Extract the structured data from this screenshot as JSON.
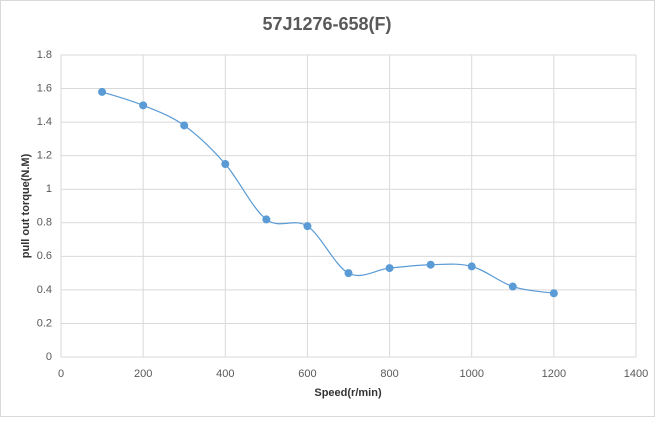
{
  "chart_data": {
    "type": "scatter",
    "title": "57J1276-658(F)",
    "x_label": "Speed(r/min)",
    "y_label": "pull out torque(N.M)",
    "series": [
      {
        "name": "pull out torque",
        "color": "#5b9bd5",
        "x": [
          100,
          200,
          300,
          400,
          500,
          600,
          700,
          800,
          900,
          1000,
          1100,
          1200
        ],
        "values": [
          1.58,
          1.5,
          1.38,
          1.15,
          0.82,
          0.78,
          0.5,
          0.53,
          0.55,
          0.54,
          0.42,
          0.38
        ]
      }
    ],
    "xlim": [
      0,
      1400
    ],
    "xticks": [
      0,
      200,
      400,
      600,
      800,
      1000,
      1200,
      1400
    ],
    "ylim": [
      0,
      1.8
    ],
    "yticks": [
      0,
      0.2,
      0.4,
      0.6,
      0.8,
      1,
      1.2,
      1.4,
      1.6,
      1.8
    ],
    "grid": true,
    "smooth": true
  }
}
